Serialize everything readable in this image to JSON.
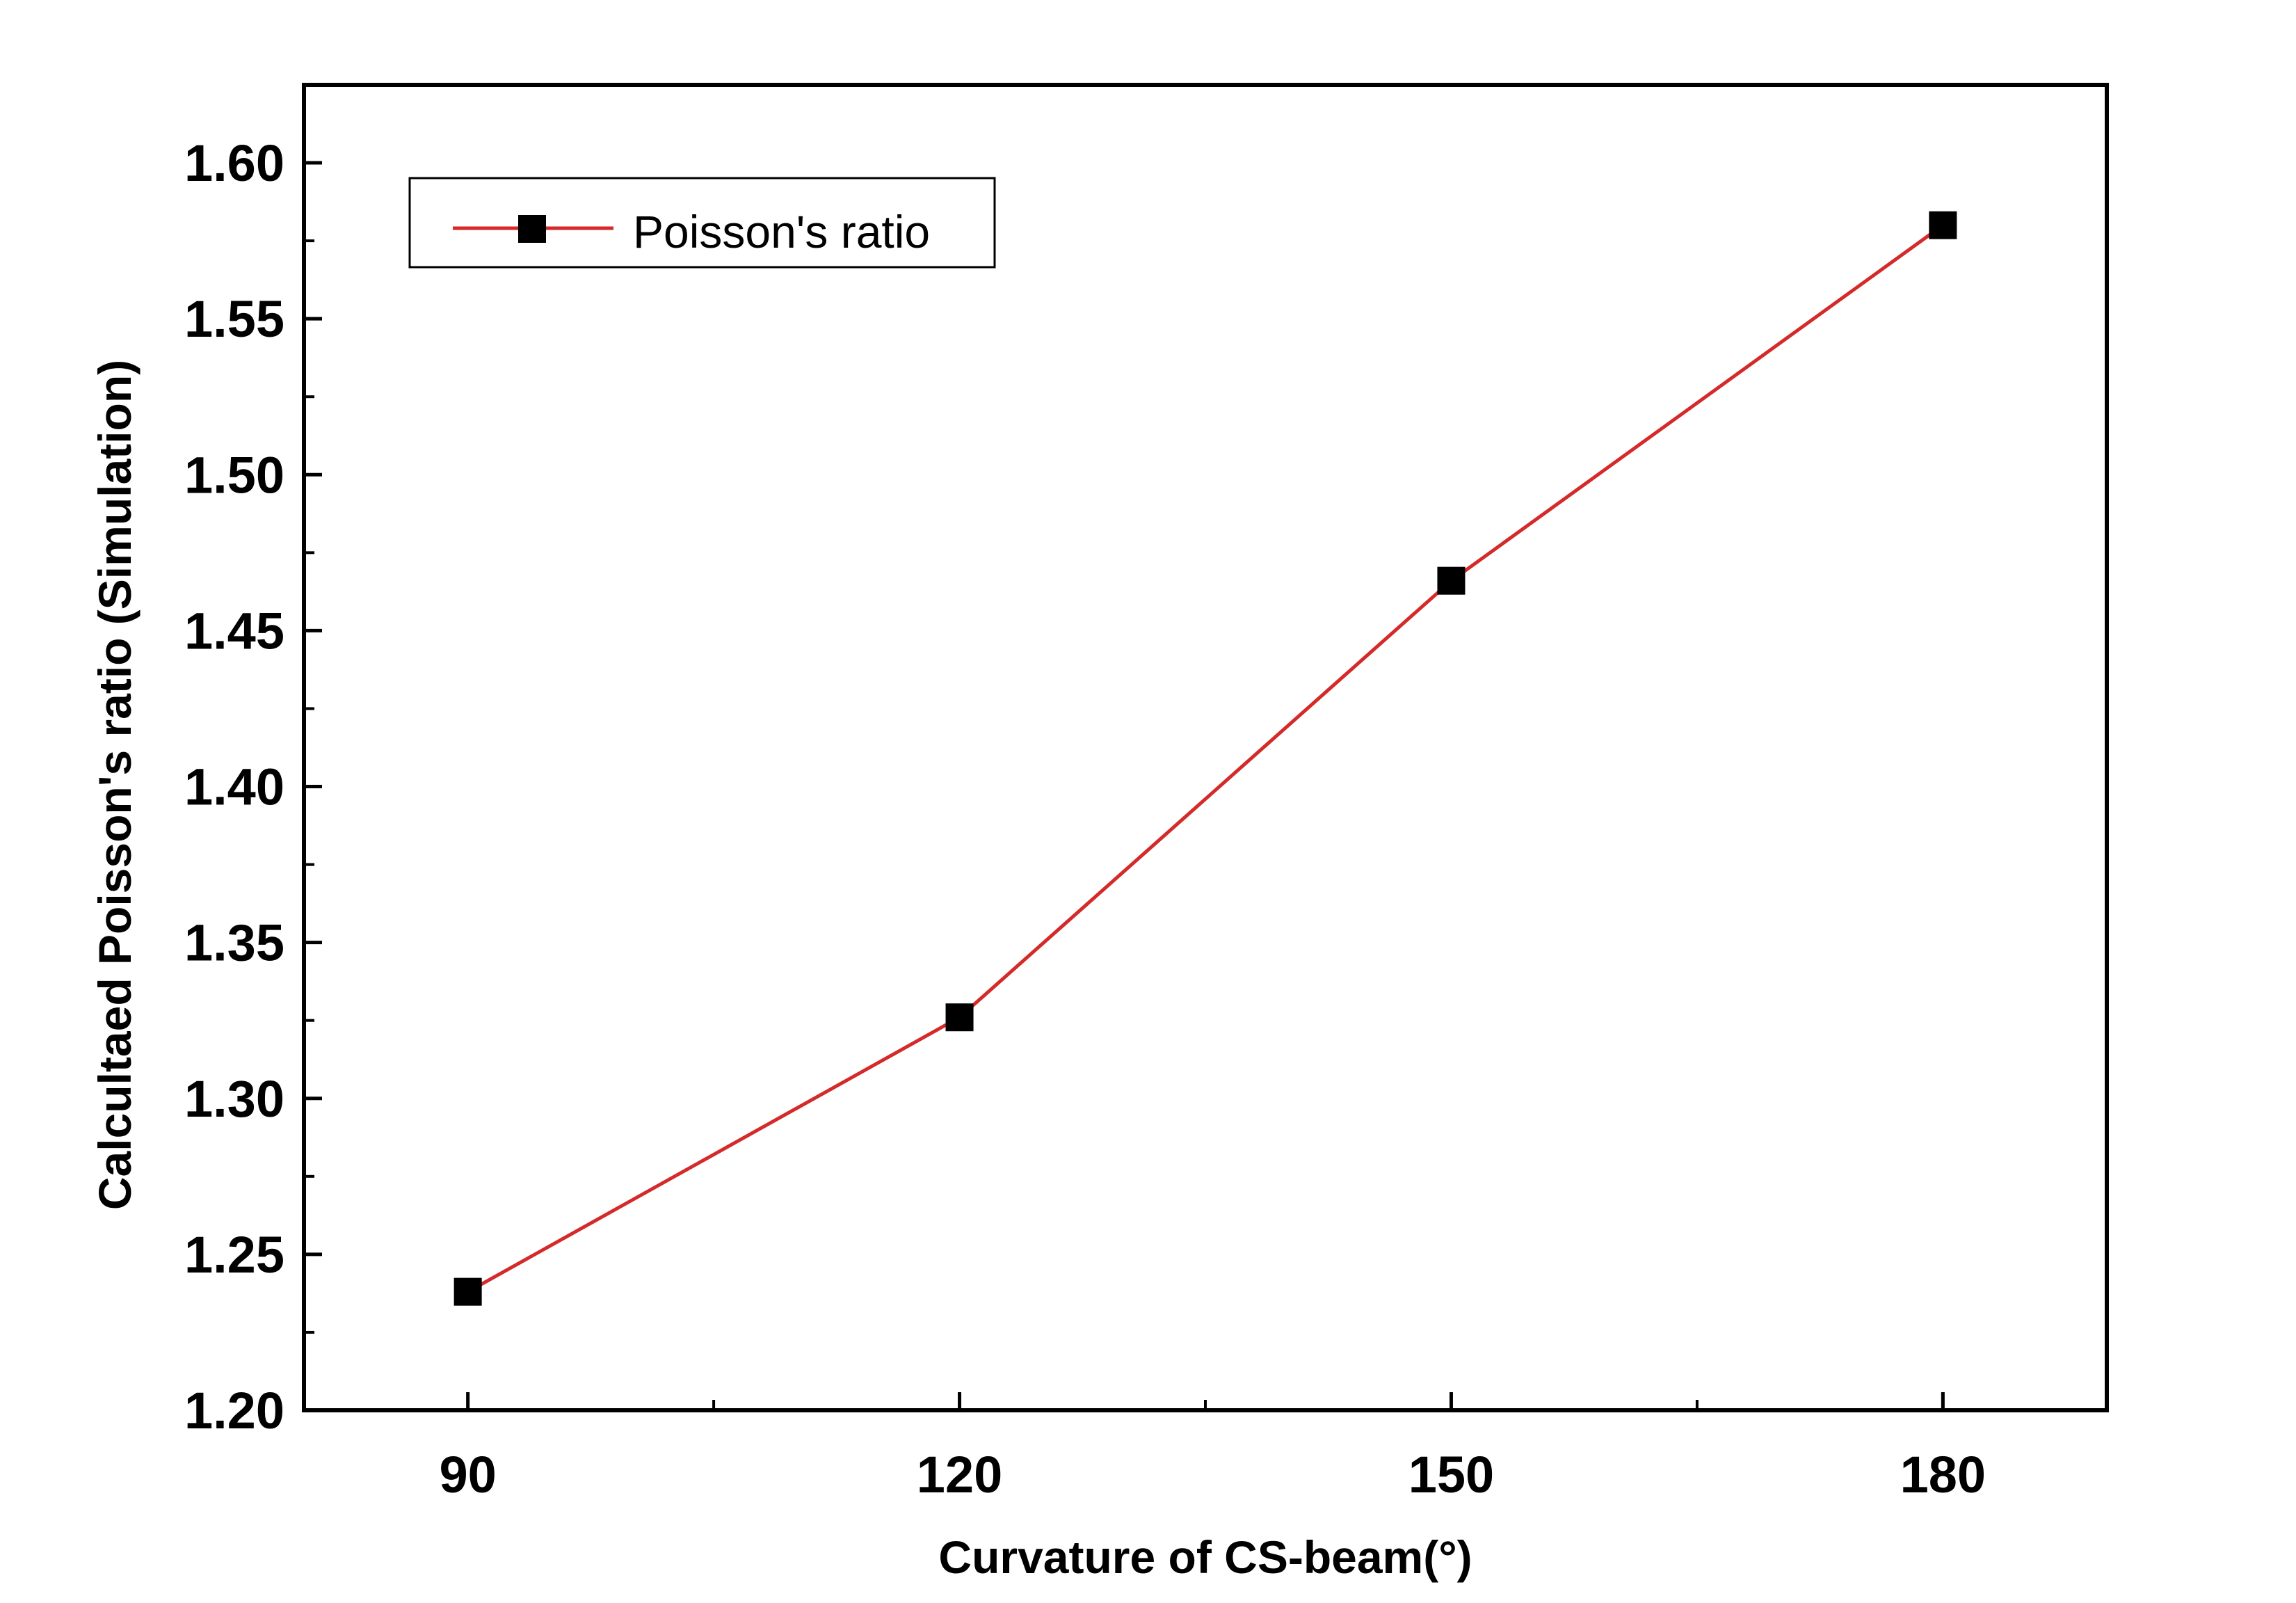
{
  "chart_data": {
    "type": "line",
    "title": "",
    "xlabel": "Curvature of CS-beam(°)",
    "ylabel": "Calcultaed Poisson's ratio (Simulation)",
    "xlim": [
      80,
      190
    ],
    "ylim": [
      1.2,
      1.625
    ],
    "x_ticks": [
      90,
      120,
      150,
      180
    ],
    "x_tick_labels": [
      "90",
      "120",
      "150",
      "180"
    ],
    "y_ticks": [
      1.2,
      1.25,
      1.3,
      1.35,
      1.4,
      1.45,
      1.5,
      1.55,
      1.6
    ],
    "y_tick_labels": [
      "1.20",
      "1.25",
      "1.30",
      "1.35",
      "1.40",
      "1.45",
      "1.50",
      "1.55",
      "1.60"
    ],
    "grid": false,
    "legend_position": "top-left",
    "series": [
      {
        "name": "Poisson's ratio",
        "marker": "square",
        "line_color": "#d42a2a",
        "marker_color": "#000000",
        "x": [
          90,
          120,
          150,
          180
        ],
        "y": [
          1.238,
          1.326,
          1.466,
          1.58
        ]
      }
    ]
  }
}
